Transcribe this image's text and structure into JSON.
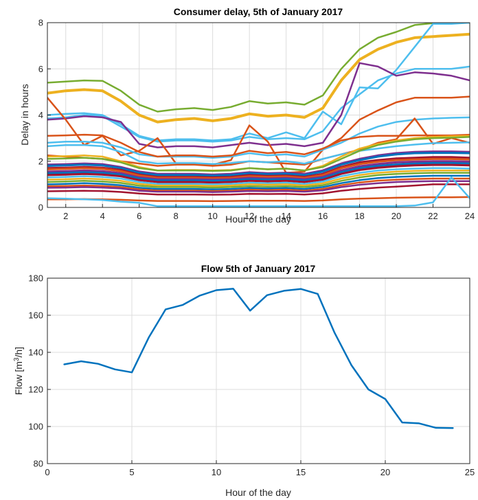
{
  "chart_data": [
    {
      "type": "line",
      "title": "Consumer delay, 5th of January 2017",
      "xlabel": "Hour of the day",
      "ylabel": "Delay in hours",
      "xlim": [
        1,
        24
      ],
      "ylim": [
        0,
        8
      ],
      "xticks": [
        2,
        4,
        6,
        8,
        10,
        12,
        14,
        16,
        18,
        20,
        22,
        24
      ],
      "yticks": [
        0,
        2,
        4,
        6,
        8
      ],
      "grid": true,
      "x": [
        1,
        2,
        3,
        4,
        5,
        6,
        7,
        8,
        9,
        10,
        11,
        12,
        13,
        14,
        15,
        16,
        17,
        18,
        19,
        20,
        21,
        22,
        23,
        24
      ],
      "series": [
        {
          "color": "#77AC30",
          "width": 2.5,
          "values": [
            5.4,
            5.45,
            5.5,
            5.48,
            5.05,
            4.45,
            4.15,
            4.25,
            4.3,
            4.22,
            4.35,
            4.6,
            4.5,
            4.55,
            4.45,
            4.85,
            6.0,
            6.85,
            7.35,
            7.6,
            7.9,
            7.98,
            8.0,
            8.0
          ]
        },
        {
          "color": "#EDB120",
          "width": 4,
          "values": [
            4.95,
            5.05,
            5.1,
            5.05,
            4.6,
            4.0,
            3.7,
            3.8,
            3.85,
            3.75,
            3.85,
            4.05,
            3.95,
            4.0,
            3.9,
            4.3,
            5.5,
            6.4,
            6.85,
            7.15,
            7.35,
            7.4,
            7.45,
            7.5
          ]
        },
        {
          "color": "#4DBEEE",
          "width": 2.5,
          "values": [
            4.0,
            4.05,
            4.08,
            4.0,
            3.6,
            3.1,
            2.9,
            2.95,
            2.95,
            2.9,
            2.95,
            3.2,
            3.0,
            3.25,
            3.0,
            4.15,
            3.6,
            5.2,
            5.15,
            5.95,
            6.95,
            7.95,
            7.95,
            8.0
          ]
        },
        {
          "color": "#4DBEEE",
          "width": 2.5,
          "values": [
            3.85,
            3.9,
            4.0,
            3.95,
            3.5,
            3.05,
            2.85,
            2.9,
            2.9,
            2.85,
            2.9,
            3.05,
            2.95,
            3.0,
            2.95,
            3.3,
            4.3,
            4.9,
            5.5,
            5.8,
            6.0,
            6.0,
            6.0,
            6.1
          ]
        },
        {
          "color": "#7E2F8E",
          "width": 2.5,
          "values": [
            3.8,
            3.85,
            3.95,
            3.9,
            3.7,
            2.75,
            2.6,
            2.65,
            2.65,
            2.6,
            2.7,
            2.8,
            2.7,
            2.75,
            2.65,
            2.8,
            4.0,
            6.25,
            6.1,
            5.7,
            5.85,
            5.8,
            5.7,
            5.5
          ]
        },
        {
          "color": "#D95319",
          "width": 2.5,
          "values": [
            4.75,
            3.8,
            2.7,
            3.1,
            2.25,
            2.45,
            3.0,
            1.9,
            1.9,
            1.85,
            2.05,
            3.55,
            2.85,
            1.5,
            1.55,
            2.5,
            3.0,
            3.8,
            4.2,
            4.55,
            4.75,
            4.75,
            4.75,
            4.8
          ]
        },
        {
          "color": "#4DBEEE",
          "width": 2.5,
          "values": [
            2.8,
            2.85,
            2.85,
            2.8,
            2.6,
            2.3,
            2.2,
            2.2,
            2.2,
            2.15,
            2.2,
            2.35,
            2.25,
            2.3,
            2.2,
            2.5,
            2.8,
            3.2,
            3.5,
            3.7,
            3.8,
            3.85,
            3.88,
            3.9
          ]
        },
        {
          "color": "#D95319",
          "width": 2.5,
          "values": [
            3.1,
            3.12,
            3.15,
            3.12,
            2.8,
            2.4,
            2.2,
            2.25,
            2.25,
            2.2,
            2.25,
            2.45,
            2.35,
            2.4,
            2.3,
            2.55,
            2.9,
            3.05,
            3.1,
            3.1,
            3.12,
            3.12,
            3.12,
            3.15
          ]
        },
        {
          "color": "#D95319",
          "width": 2.5,
          "values": [
            2.25,
            2.2,
            2.15,
            2.1,
            2.0,
            1.9,
            1.8,
            1.85,
            1.85,
            1.8,
            1.85,
            2.0,
            1.95,
            1.9,
            1.85,
            2.1,
            2.3,
            2.5,
            2.8,
            2.95,
            3.85,
            2.75,
            3.0,
            2.8
          ]
        },
        {
          "color": "#4DBEEE",
          "width": 2.5,
          "values": [
            2.65,
            2.7,
            2.7,
            2.65,
            2.4,
            2.0,
            1.9,
            1.92,
            1.92,
            1.88,
            1.92,
            2.0,
            1.95,
            2.0,
            1.9,
            2.1,
            2.3,
            2.45,
            2.55,
            2.65,
            2.72,
            2.78,
            2.8,
            2.82
          ]
        },
        {
          "color": "#EDB120",
          "width": 2.5,
          "values": [
            2.2,
            2.22,
            2.25,
            2.2,
            2.0,
            1.75,
            1.6,
            1.62,
            1.62,
            1.6,
            1.62,
            1.7,
            1.65,
            1.68,
            1.6,
            1.8,
            2.2,
            2.55,
            2.75,
            2.9,
            3.0,
            3.05,
            3.08,
            3.1
          ]
        },
        {
          "color": "#77AC30",
          "width": 2.5,
          "values": [
            2.1,
            2.12,
            2.15,
            2.1,
            1.95,
            1.7,
            1.6,
            1.6,
            1.6,
            1.58,
            1.6,
            1.7,
            1.65,
            1.68,
            1.6,
            1.75,
            2.1,
            2.45,
            2.7,
            2.85,
            2.95,
            3.0,
            3.02,
            3.05
          ]
        },
        {
          "color": "#7E2F8E",
          "width": 3,
          "values": [
            1.85,
            1.87,
            1.9,
            1.87,
            1.75,
            1.55,
            1.45,
            1.45,
            1.45,
            1.42,
            1.45,
            1.52,
            1.48,
            1.5,
            1.45,
            1.6,
            1.9,
            2.1,
            2.25,
            2.35,
            2.4,
            2.42,
            2.42,
            2.4
          ]
        },
        {
          "color": "#0072BD",
          "width": 3,
          "values": [
            1.8,
            1.82,
            1.85,
            1.82,
            1.7,
            1.5,
            1.4,
            1.4,
            1.4,
            1.38,
            1.4,
            1.48,
            1.44,
            1.46,
            1.4,
            1.55,
            1.85,
            2.05,
            2.2,
            2.3,
            2.35,
            2.36,
            2.36,
            2.35
          ]
        },
        {
          "color": "#A2142F",
          "width": 3,
          "values": [
            1.7,
            1.72,
            1.75,
            1.72,
            1.62,
            1.42,
            1.32,
            1.32,
            1.32,
            1.3,
            1.32,
            1.4,
            1.36,
            1.38,
            1.32,
            1.45,
            1.75,
            1.95,
            2.05,
            2.12,
            2.15,
            2.18,
            2.18,
            2.15
          ]
        },
        {
          "color": "#D95319",
          "width": 3,
          "values": [
            1.65,
            1.67,
            1.7,
            1.67,
            1.57,
            1.38,
            1.28,
            1.28,
            1.28,
            1.26,
            1.28,
            1.35,
            1.32,
            1.34,
            1.28,
            1.4,
            1.7,
            1.88,
            1.98,
            2.05,
            2.08,
            2.1,
            2.1,
            2.08
          ]
        },
        {
          "color": "#7E2F8E",
          "width": 3,
          "values": [
            1.55,
            1.57,
            1.6,
            1.57,
            1.48,
            1.3,
            1.22,
            1.22,
            1.22,
            1.2,
            1.22,
            1.28,
            1.25,
            1.27,
            1.22,
            1.32,
            1.6,
            1.78,
            1.88,
            1.95,
            1.98,
            2.0,
            2.0,
            1.98
          ]
        },
        {
          "color": "#0072BD",
          "width": 3,
          "values": [
            1.48,
            1.5,
            1.52,
            1.5,
            1.42,
            1.25,
            1.17,
            1.17,
            1.17,
            1.15,
            1.17,
            1.22,
            1.2,
            1.22,
            1.17,
            1.27,
            1.52,
            1.7,
            1.8,
            1.86,
            1.9,
            1.92,
            1.92,
            1.9
          ]
        },
        {
          "color": "#A2142F",
          "width": 3,
          "values": [
            1.4,
            1.42,
            1.45,
            1.42,
            1.35,
            1.18,
            1.1,
            1.1,
            1.1,
            1.08,
            1.1,
            1.15,
            1.13,
            1.15,
            1.1,
            1.2,
            1.45,
            1.62,
            1.72,
            1.78,
            1.82,
            1.84,
            1.84,
            1.82
          ]
        },
        {
          "color": "#4DBEEE",
          "width": 2.5,
          "values": [
            1.3,
            1.32,
            1.35,
            1.32,
            1.25,
            1.1,
            1.02,
            1.02,
            1.02,
            1.0,
            1.02,
            1.07,
            1.05,
            1.07,
            1.02,
            1.12,
            1.35,
            1.5,
            1.6,
            1.65,
            1.68,
            1.7,
            1.7,
            1.68
          ]
        },
        {
          "color": "#EDB120",
          "width": 2.5,
          "values": [
            1.2,
            1.22,
            1.25,
            1.22,
            1.15,
            1.02,
            0.95,
            0.95,
            0.95,
            0.93,
            0.95,
            1.0,
            0.98,
            1.0,
            0.95,
            1.04,
            1.25,
            1.4,
            1.5,
            1.55,
            1.58,
            1.6,
            1.6,
            1.6
          ]
        },
        {
          "color": "#77AC30",
          "width": 2.5,
          "values": [
            1.1,
            1.12,
            1.15,
            1.12,
            1.06,
            0.94,
            0.88,
            0.88,
            0.88,
            0.86,
            0.88,
            0.92,
            0.9,
            0.92,
            0.88,
            0.96,
            1.15,
            1.3,
            1.4,
            1.45,
            1.48,
            1.5,
            1.5,
            1.5
          ]
        },
        {
          "color": "#0072BD",
          "width": 2.5,
          "values": [
            1.0,
            1.02,
            1.05,
            1.02,
            0.96,
            0.85,
            0.8,
            0.8,
            0.8,
            0.78,
            0.8,
            0.84,
            0.82,
            0.84,
            0.8,
            0.88,
            1.05,
            1.18,
            1.27,
            1.32,
            1.35,
            1.37,
            1.37,
            1.37
          ]
        },
        {
          "color": "#D95319",
          "width": 2.5,
          "values": [
            0.92,
            0.93,
            0.95,
            0.93,
            0.88,
            0.78,
            0.73,
            0.73,
            0.73,
            0.71,
            0.73,
            0.77,
            0.75,
            0.77,
            0.73,
            0.8,
            0.96,
            1.08,
            1.16,
            1.2,
            1.23,
            1.25,
            1.25,
            1.25
          ]
        },
        {
          "color": "#7E2F8E",
          "width": 2.5,
          "values": [
            0.85,
            0.86,
            0.88,
            0.86,
            0.82,
            0.72,
            0.68,
            0.68,
            0.68,
            0.66,
            0.68,
            0.71,
            0.7,
            0.71,
            0.68,
            0.74,
            0.88,
            0.98,
            1.05,
            1.1,
            1.12,
            1.14,
            1.14,
            1.14
          ]
        },
        {
          "color": "#A2142F",
          "width": 2.5,
          "values": [
            0.7,
            0.71,
            0.72,
            0.71,
            0.67,
            0.6,
            0.56,
            0.56,
            0.56,
            0.55,
            0.56,
            0.59,
            0.58,
            0.59,
            0.56,
            0.61,
            0.72,
            0.8,
            0.86,
            0.9,
            0.95,
            1.0,
            1.0,
            1.0
          ]
        },
        {
          "color": "#D95319",
          "width": 2.5,
          "values": [
            0.35,
            0.35,
            0.36,
            0.35,
            0.33,
            0.3,
            0.28,
            0.28,
            0.28,
            0.27,
            0.28,
            0.29,
            0.29,
            0.29,
            0.28,
            0.3,
            0.35,
            0.38,
            0.4,
            0.42,
            0.43,
            0.44,
            0.44,
            0.45
          ]
        },
        {
          "color": "#4DBEEE",
          "width": 2.5,
          "values": [
            0.4,
            0.38,
            0.35,
            0.32,
            0.25,
            0.2,
            0.05,
            0.05,
            0.05,
            0.05,
            0.05,
            0.05,
            0.05,
            0.05,
            0.05,
            0.05,
            0.05,
            0.05,
            0.05,
            0.05,
            0.08,
            0.22,
            1.3,
            0.4
          ]
        }
      ]
    },
    {
      "type": "line",
      "title": "Flow 5th of January 2017",
      "xlabel": "Hour of the day",
      "ylabel_base": "Flow [m",
      "ylabel_sup": "3",
      "ylabel_tail": "/h]",
      "xlim": [
        0,
        25
      ],
      "ylim": [
        80,
        180
      ],
      "xticks": [
        0,
        5,
        10,
        15,
        20,
        25
      ],
      "yticks": [
        80,
        100,
        120,
        140,
        160,
        180
      ],
      "grid": true,
      "x": [
        1,
        2,
        3,
        4,
        5,
        6,
        7,
        8,
        9,
        10,
        11,
        12,
        13,
        14,
        15,
        16,
        17,
        18,
        19,
        20,
        21,
        22,
        23,
        24
      ],
      "series": [
        {
          "color": "#0072BD",
          "width": 2.5,
          "values": [
            133.5,
            135.2,
            133.8,
            130.8,
            129.2,
            148.0,
            163.2,
            165.5,
            170.5,
            173.5,
            174.3,
            162.5,
            170.8,
            173.2,
            174.2,
            171.5,
            150.5,
            133.0,
            120.0,
            114.8,
            102.2,
            101.7,
            99.3,
            99.2
          ]
        }
      ]
    }
  ]
}
